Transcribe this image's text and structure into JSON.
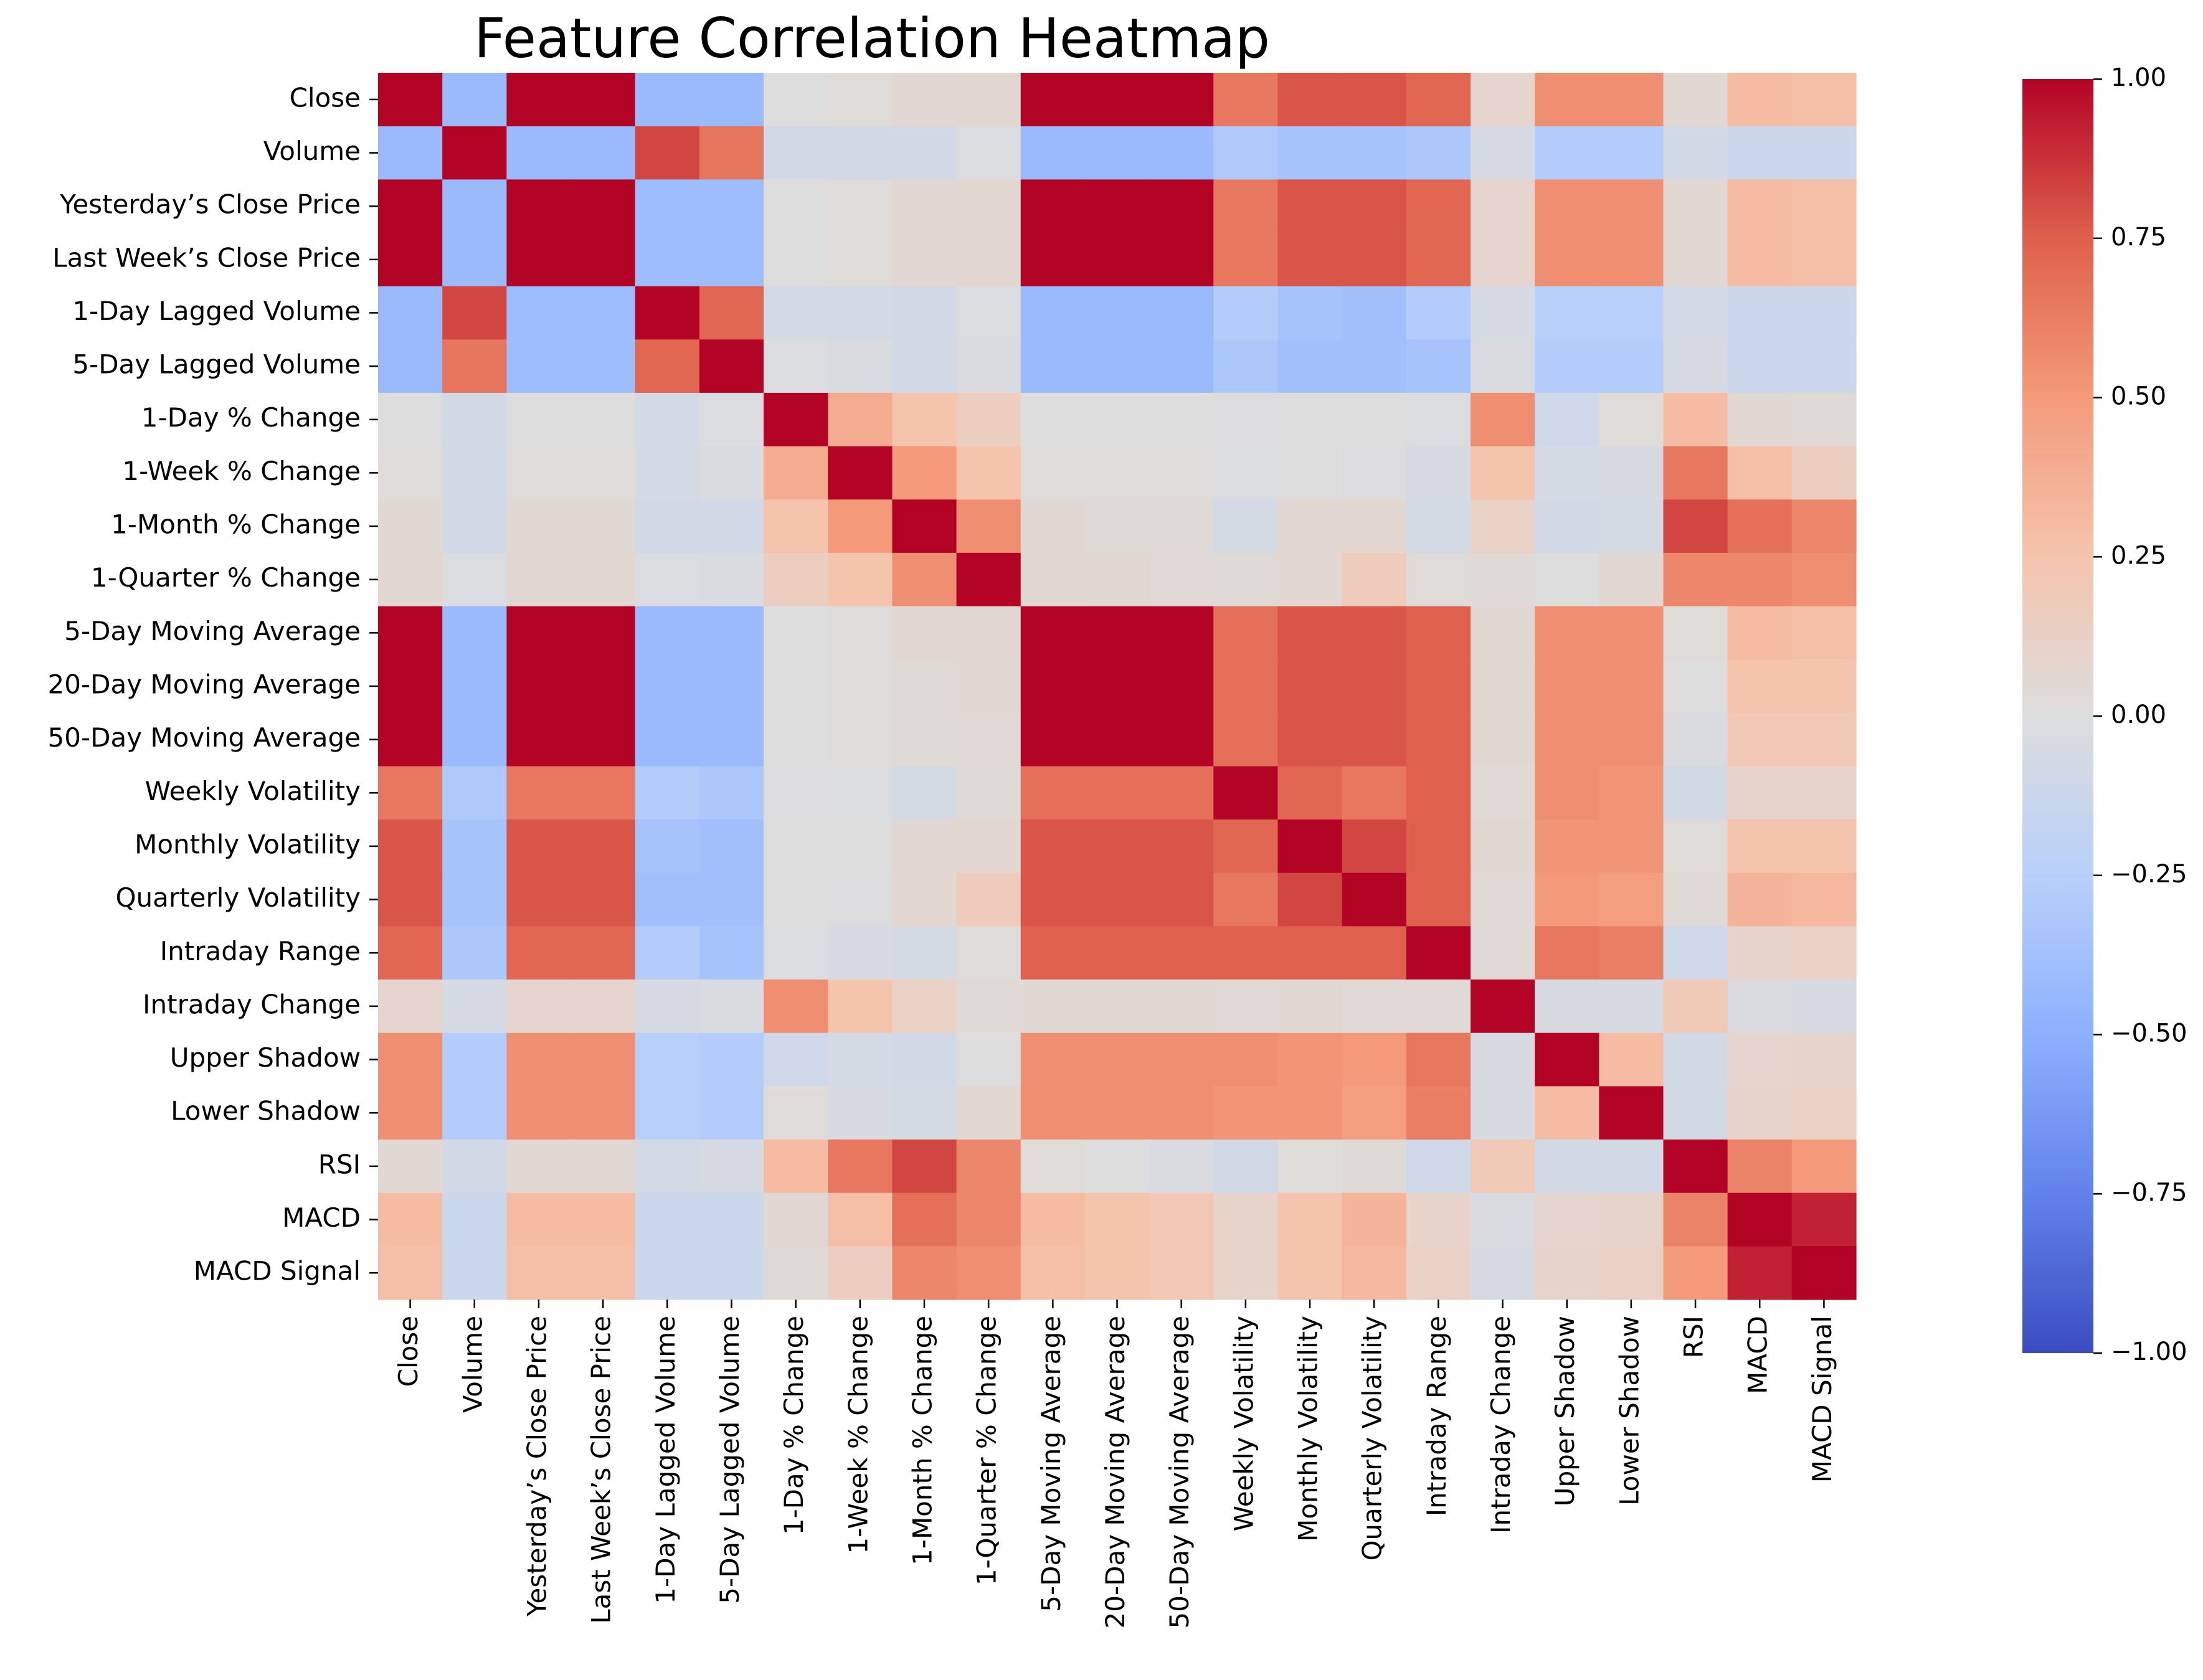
{
  "chart_data": {
    "type": "heatmap",
    "title": "Feature Correlation Heatmap",
    "xlabel": "",
    "ylabel": "",
    "colormap": "coolwarm",
    "vmin": -1.0,
    "vmax": 1.0,
    "colorbar_ticks": [
      "1.00",
      "0.75",
      "0.50",
      "0.25",
      "0.00",
      "−0.25",
      "−0.50",
      "−0.75",
      "−1.00"
    ],
    "colorbar_tick_values": [
      1.0,
      0.75,
      0.5,
      0.25,
      0.0,
      -0.25,
      -0.5,
      -0.75,
      -1.0
    ],
    "colorbar_position": "right",
    "labels": [
      "Close",
      "Volume",
      "Yesterday’s Close Price",
      "Last Week’s Close Price",
      "1-Day Lagged Volume",
      "5-Day Lagged Volume",
      "1-Day % Change",
      "1-Week % Change",
      "1-Month % Change",
      "1-Quarter % Change",
      "5-Day Moving Average",
      "20-Day Moving Average",
      "50-Day Moving Average",
      "Weekly Volatility",
      "Monthly Volatility",
      "Quarterly Volatility",
      "Intraday Range",
      "Intraday Change",
      "Upper Shadow",
      "Lower Shadow",
      "RSI",
      "MACD",
      "MACD Signal"
    ],
    "values": [
      [
        1.0,
        -0.42,
        1.0,
        1.0,
        -0.42,
        -0.42,
        0.0,
        0.02,
        0.05,
        0.06,
        1.0,
        1.0,
        1.0,
        0.65,
        0.78,
        0.78,
        0.72,
        0.08,
        0.55,
        0.55,
        0.05,
        0.3,
        0.28
      ],
      [
        -0.42,
        1.0,
        -0.42,
        -0.42,
        0.82,
        0.66,
        -0.08,
        -0.08,
        -0.08,
        -0.02,
        -0.42,
        -0.42,
        -0.42,
        -0.3,
        -0.35,
        -0.35,
        -0.32,
        -0.05,
        -0.28,
        -0.28,
        -0.08,
        -0.12,
        -0.12
      ],
      [
        1.0,
        -0.42,
        1.0,
        1.0,
        -0.4,
        -0.4,
        0.0,
        0.02,
        0.05,
        0.06,
        1.0,
        1.0,
        1.0,
        0.65,
        0.78,
        0.78,
        0.72,
        0.08,
        0.55,
        0.55,
        0.05,
        0.3,
        0.28
      ],
      [
        1.0,
        -0.42,
        1.0,
        1.0,
        -0.4,
        -0.4,
        0.0,
        0.02,
        0.05,
        0.06,
        1.0,
        1.0,
        1.0,
        0.65,
        0.78,
        0.78,
        0.72,
        0.08,
        0.55,
        0.55,
        0.05,
        0.3,
        0.28
      ],
      [
        -0.42,
        0.82,
        -0.4,
        -0.4,
        1.0,
        0.72,
        -0.07,
        -0.07,
        -0.08,
        -0.02,
        -0.42,
        -0.42,
        -0.42,
        -0.28,
        -0.35,
        -0.38,
        -0.28,
        -0.05,
        -0.25,
        -0.25,
        -0.07,
        -0.12,
        -0.12
      ],
      [
        -0.42,
        0.66,
        -0.4,
        -0.4,
        0.72,
        1.0,
        -0.02,
        -0.03,
        -0.08,
        -0.03,
        -0.42,
        -0.42,
        -0.42,
        -0.32,
        -0.38,
        -0.38,
        -0.35,
        -0.03,
        -0.28,
        -0.28,
        -0.05,
        -0.12,
        -0.12
      ],
      [
        0.0,
        -0.08,
        0.0,
        0.0,
        -0.07,
        -0.02,
        1.0,
        0.4,
        0.25,
        0.15,
        0.0,
        0.0,
        0.0,
        -0.01,
        0.0,
        0.0,
        -0.02,
        0.55,
        -0.1,
        0.02,
        0.3,
        0.05,
        0.03
      ],
      [
        0.02,
        -0.08,
        0.02,
        0.02,
        -0.07,
        -0.03,
        0.4,
        1.0,
        0.5,
        0.25,
        0.01,
        0.01,
        0.01,
        -0.02,
        0.0,
        -0.01,
        -0.05,
        0.25,
        -0.06,
        -0.04,
        0.65,
        0.28,
        0.15
      ],
      [
        0.05,
        -0.08,
        0.05,
        0.05,
        -0.08,
        -0.08,
        0.25,
        0.5,
        1.0,
        0.55,
        0.05,
        0.03,
        0.03,
        -0.06,
        0.05,
        0.06,
        -0.06,
        0.12,
        -0.08,
        -0.06,
        0.82,
        0.68,
        0.58
      ],
      [
        0.06,
        -0.02,
        0.06,
        0.06,
        -0.02,
        -0.03,
        0.15,
        0.25,
        0.55,
        1.0,
        0.06,
        0.05,
        0.04,
        0.03,
        0.06,
        0.18,
        0.02,
        0.03,
        0.0,
        0.05,
        0.58,
        0.58,
        0.55
      ],
      [
        1.0,
        -0.42,
        1.0,
        1.0,
        -0.42,
        -0.42,
        0.0,
        0.01,
        0.05,
        0.06,
        1.0,
        1.0,
        1.0,
        0.68,
        0.78,
        0.78,
        0.75,
        0.05,
        0.55,
        0.55,
        0.02,
        0.3,
        0.28
      ],
      [
        1.0,
        -0.42,
        1.0,
        1.0,
        -0.42,
        -0.42,
        0.0,
        0.01,
        0.03,
        0.05,
        1.0,
        1.0,
        1.0,
        0.68,
        0.78,
        0.78,
        0.75,
        0.05,
        0.55,
        0.55,
        0.0,
        0.25,
        0.25
      ],
      [
        1.0,
        -0.42,
        1.0,
        1.0,
        -0.42,
        -0.42,
        0.0,
        0.01,
        0.03,
        0.04,
        1.0,
        1.0,
        1.0,
        0.68,
        0.78,
        0.78,
        0.75,
        0.05,
        0.55,
        0.55,
        -0.03,
        0.22,
        0.22
      ],
      [
        0.65,
        -0.3,
        0.65,
        0.65,
        -0.28,
        -0.32,
        -0.01,
        -0.02,
        -0.06,
        0.03,
        0.68,
        0.68,
        0.68,
        1.0,
        0.72,
        0.65,
        0.75,
        0.04,
        0.55,
        0.52,
        -0.08,
        0.1,
        0.1
      ],
      [
        0.78,
        -0.35,
        0.78,
        0.78,
        -0.35,
        -0.38,
        0.0,
        0.0,
        0.05,
        0.06,
        0.78,
        0.78,
        0.78,
        0.72,
        1.0,
        0.82,
        0.75,
        0.05,
        0.52,
        0.52,
        0.02,
        0.25,
        0.25
      ],
      [
        0.78,
        -0.35,
        0.78,
        0.78,
        -0.38,
        -0.38,
        0.0,
        -0.01,
        0.06,
        0.18,
        0.78,
        0.78,
        0.78,
        0.65,
        0.82,
        1.0,
        0.75,
        0.04,
        0.5,
        0.48,
        0.03,
        0.35,
        0.32
      ],
      [
        0.72,
        -0.32,
        0.72,
        0.72,
        -0.28,
        -0.35,
        -0.02,
        -0.05,
        -0.06,
        0.02,
        0.75,
        0.75,
        0.75,
        0.75,
        0.75,
        0.75,
        1.0,
        0.04,
        0.65,
        0.62,
        -0.1,
        0.1,
        0.12
      ],
      [
        0.08,
        -0.05,
        0.08,
        0.08,
        -0.05,
        -0.03,
        0.55,
        0.25,
        0.12,
        0.03,
        0.05,
        0.05,
        0.05,
        0.04,
        0.05,
        0.04,
        0.04,
        1.0,
        -0.04,
        -0.04,
        0.2,
        -0.03,
        -0.05
      ],
      [
        0.55,
        -0.28,
        0.55,
        0.55,
        -0.25,
        -0.28,
        -0.1,
        -0.06,
        -0.08,
        0.0,
        0.55,
        0.55,
        0.55,
        0.55,
        0.52,
        0.5,
        0.65,
        -0.04,
        1.0,
        0.3,
        -0.08,
        0.08,
        0.1
      ],
      [
        0.55,
        -0.28,
        0.55,
        0.55,
        -0.25,
        -0.28,
        0.02,
        -0.04,
        -0.06,
        0.05,
        0.55,
        0.55,
        0.55,
        0.52,
        0.52,
        0.48,
        0.62,
        -0.04,
        0.3,
        1.0,
        -0.08,
        0.1,
        0.12
      ],
      [
        0.05,
        -0.08,
        0.05,
        0.05,
        -0.07,
        -0.05,
        0.3,
        0.65,
        0.82,
        0.58,
        0.02,
        0.0,
        -0.03,
        -0.08,
        0.02,
        0.03,
        -0.1,
        0.2,
        -0.08,
        -0.08,
        1.0,
        0.6,
        0.5
      ],
      [
        0.3,
        -0.12,
        0.3,
        0.3,
        -0.12,
        -0.12,
        0.05,
        0.28,
        0.68,
        0.58,
        0.3,
        0.25,
        0.22,
        0.1,
        0.25,
        0.35,
        0.1,
        -0.03,
        0.08,
        0.1,
        0.6,
        1.0,
        0.92
      ],
      [
        0.28,
        -0.12,
        0.28,
        0.28,
        -0.12,
        -0.12,
        0.03,
        0.15,
        0.58,
        0.55,
        0.28,
        0.25,
        0.22,
        0.1,
        0.25,
        0.32,
        0.12,
        -0.05,
        0.1,
        0.12,
        0.5,
        0.92,
        1.0
      ]
    ]
  }
}
